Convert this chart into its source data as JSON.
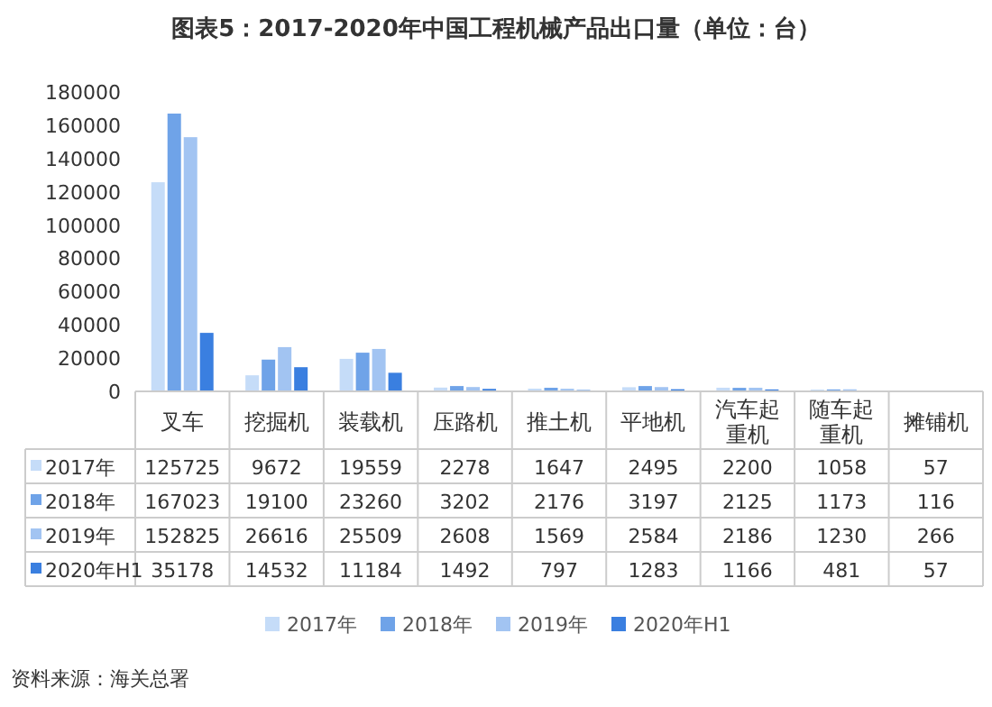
{
  "chart_data": {
    "type": "bar",
    "title": "图表5：2017-2020年中国工程机械产品出口量（单位：台）",
    "categories": [
      "叉车",
      "挖掘机",
      "装载机",
      "压路机",
      "推土机",
      "平地机",
      "汽车起重机",
      "随车起重机",
      "摊铺机"
    ],
    "series": [
      {
        "name": "2017年",
        "color": "#c5dcf8",
        "values": [
          125725,
          9672,
          19559,
          2278,
          1647,
          2495,
          2200,
          1058,
          57
        ]
      },
      {
        "name": "2018年",
        "color": "#6fa3e8",
        "values": [
          167023,
          19100,
          23260,
          3202,
          2176,
          3197,
          2125,
          1173,
          116
        ]
      },
      {
        "name": "2019年",
        "color": "#a2c4f2",
        "values": [
          152825,
          26616,
          25509,
          2608,
          1569,
          2584,
          2186,
          1230,
          266
        ]
      },
      {
        "name": "2020年H1",
        "color": "#3a7fe0",
        "values": [
          35178,
          14532,
          11184,
          1492,
          797,
          1283,
          1166,
          481,
          57
        ]
      }
    ],
    "ylim": [
      0,
      180000
    ],
    "yticks": [
      0,
      20000,
      40000,
      60000,
      80000,
      100000,
      120000,
      140000,
      160000,
      180000
    ],
    "grid": false,
    "legend": "bottom",
    "data_labels": true,
    "annotations": [
      "资料来源：海关总署"
    ]
  }
}
